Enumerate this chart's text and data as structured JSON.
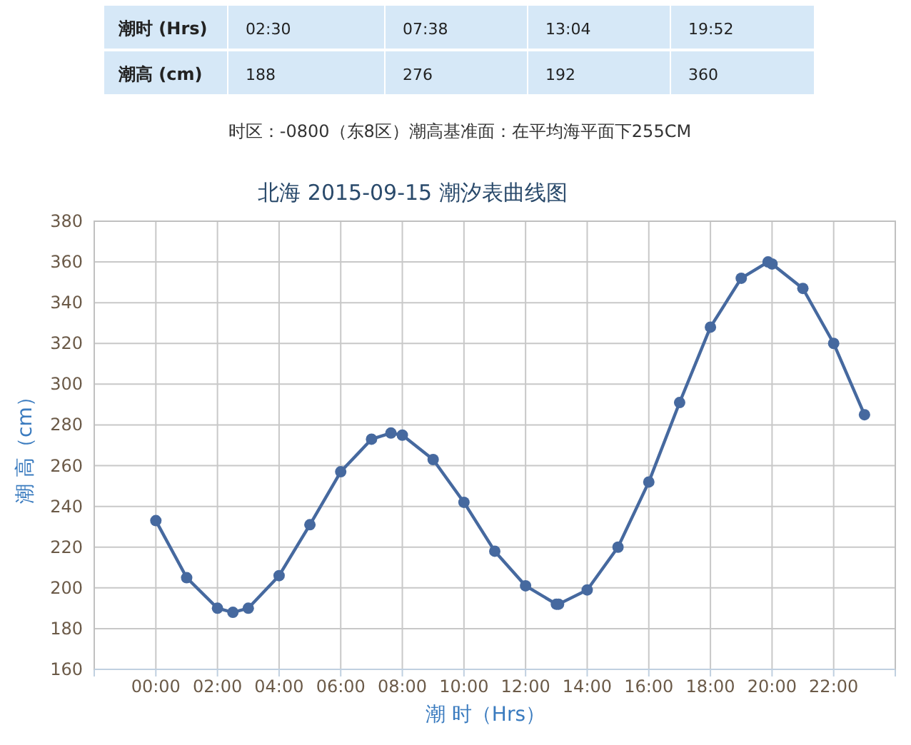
{
  "chart_data": {
    "type": "line",
    "title": "北海 2015-09-15 潮汐表曲线图",
    "xlabel": "潮 时（Hrs）",
    "ylabel": "潮 高（cm）",
    "annotations": [
      "潮时 (Hrs)",
      "02:30",
      "07:38",
      "13:04",
      "19:52",
      "潮高 (cm)",
      "188",
      "276",
      "192",
      "360",
      "时区：-0800（东8区）潮高基准面：在平均海平面下255CM"
    ],
    "x": [
      0,
      1,
      2,
      2.5,
      3,
      4,
      5,
      6,
      7,
      7.63,
      8,
      9,
      10,
      11,
      12,
      13,
      13.07,
      14,
      15,
      16,
      17,
      18,
      19,
      19.87,
      20,
      21,
      22,
      23
    ],
    "values": [
      233,
      205,
      190,
      188,
      190,
      206,
      231,
      257,
      273,
      276,
      275,
      263,
      242,
      218,
      201,
      192,
      192,
      199,
      220,
      252,
      291,
      328,
      352,
      360,
      359,
      347,
      320,
      285
    ],
    "color": "#46699f",
    "marker": "circle",
    "line_style": "solid",
    "grid": true,
    "xlim": [
      -2,
      24
    ],
    "xticks": [
      {
        "value": -2,
        "label": null
      },
      {
        "value": 0,
        "label": "00:00"
      },
      {
        "value": 2,
        "label": "02:00"
      },
      {
        "value": 4,
        "label": "04:00"
      },
      {
        "value": 6,
        "label": "06:00"
      },
      {
        "value": 8,
        "label": "08:00"
      },
      {
        "value": 10,
        "label": "10:00"
      },
      {
        "value": 12,
        "label": "12:00"
      },
      {
        "value": 14,
        "label": "14:00"
      },
      {
        "value": 16,
        "label": "16:00"
      },
      {
        "value": 18,
        "label": "18:00"
      },
      {
        "value": 20,
        "label": "20:00"
      },
      {
        "value": 22,
        "label": "22:00"
      },
      {
        "value": 24,
        "label": null
      }
    ],
    "ylim": [
      160,
      380
    ],
    "yticks": [
      160,
      180,
      200,
      220,
      240,
      260,
      280,
      300,
      320,
      340,
      360,
      380
    ]
  }
}
